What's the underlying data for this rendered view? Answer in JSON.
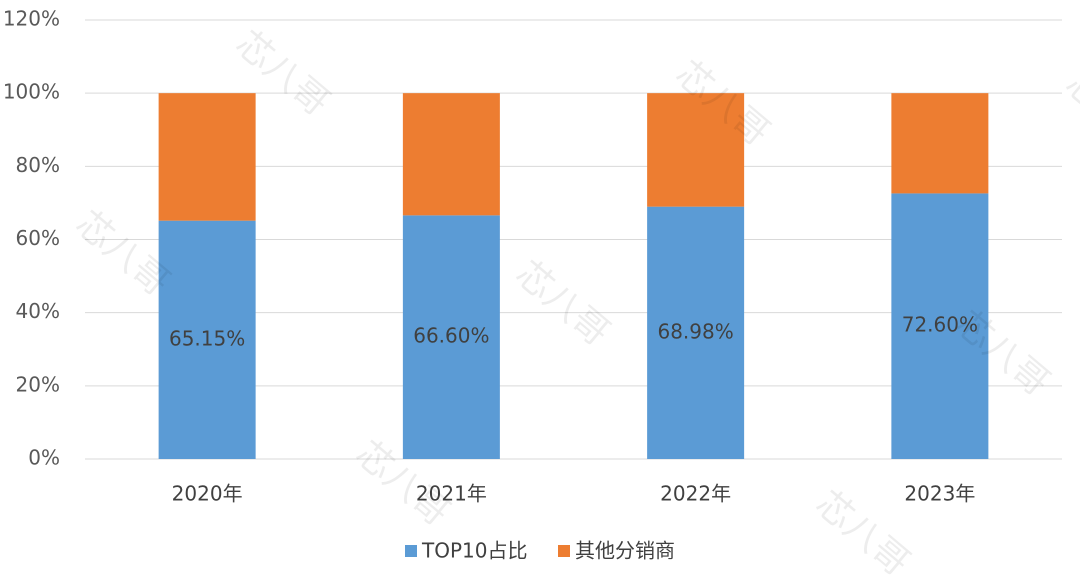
{
  "chart_data": {
    "type": "stacked_bar",
    "categories": [
      "2020年",
      "2021年",
      "2022年",
      "2023年"
    ],
    "series": [
      {
        "name": "TOP10占比",
        "color": "#5b9bd5",
        "values": [
          65.15,
          66.6,
          68.98,
          72.6
        ],
        "value_labels": [
          "65.15%",
          "66.60%",
          "68.98%",
          "72.60%"
        ]
      },
      {
        "name": "其他分销商",
        "color": "#ed7d31",
        "values": [
          34.85,
          33.4,
          31.02,
          27.4
        ]
      }
    ],
    "ylim": [
      0,
      120
    ],
    "yticks": [
      {
        "value": 0,
        "label": "0%"
      },
      {
        "value": 20,
        "label": "20%"
      },
      {
        "value": 40,
        "label": "40%"
      },
      {
        "value": 60,
        "label": "60%"
      },
      {
        "value": 80,
        "label": "80%"
      },
      {
        "value": 100,
        "label": "100%"
      },
      {
        "value": 120,
        "label": "120%"
      }
    ],
    "grid": true,
    "watermark": "芯八哥"
  }
}
